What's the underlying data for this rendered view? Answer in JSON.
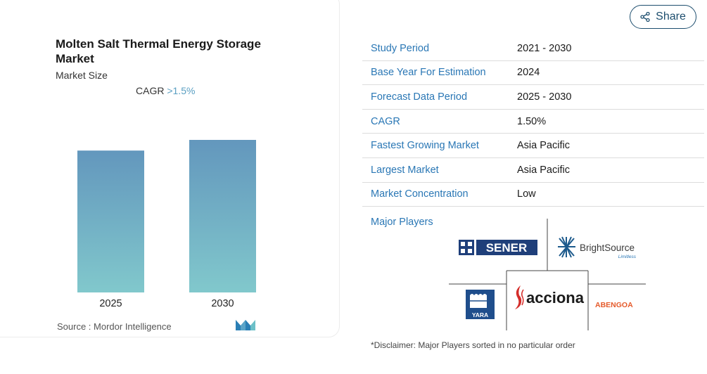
{
  "chart": {
    "title": "Molten Salt Thermal Energy Storage Market",
    "subtitle": "Market Size",
    "cagr_label": "CAGR",
    "cagr_value": ">1.5%",
    "source": "Source :  Mordor Intelligence"
  },
  "chart_data": {
    "type": "bar",
    "categories": [
      "2025",
      "2030"
    ],
    "values": [
      0.93,
      1.0
    ],
    "title": "Molten Salt Thermal Energy Storage Market",
    "subtitle": "Market Size",
    "xlabel": "",
    "ylabel": "",
    "grid": false,
    "colors": {
      "top": "#6397bd",
      "bottom": "#81c8cc"
    }
  },
  "share": {
    "label": "Share",
    "icon": "share-icon"
  },
  "info_table": [
    {
      "label": "Study Period",
      "value": "2021 - 2030"
    },
    {
      "label": "Base Year For Estimation",
      "value": "2024"
    },
    {
      "label": "Forecast Data Period",
      "value": "2025 - 2030"
    },
    {
      "label": "CAGR",
      "value": "1.50%"
    },
    {
      "label": "Fastest Growing Market",
      "value": "Asia Pacific"
    },
    {
      "label": "Largest Market",
      "value": "Asia Pacific"
    },
    {
      "label": "Market Concentration",
      "value": "Low"
    }
  ],
  "major_players": {
    "title": "Major Players",
    "logos": [
      "SENER",
      "BrightSource",
      "YARA",
      "acciona",
      "ABENGOA"
    ],
    "brightsource_tagline": "Limitless"
  },
  "disclaimer": "*Disclaimer: Major Players sorted in no particular order",
  "colors": {
    "accent": "#2a77b5",
    "share_border": "#1d4e6e",
    "abengoa": "#e55a2b",
    "acciona": "#d42d2a",
    "yara": "#1f4e8c",
    "sener": "#1f3f7a"
  }
}
